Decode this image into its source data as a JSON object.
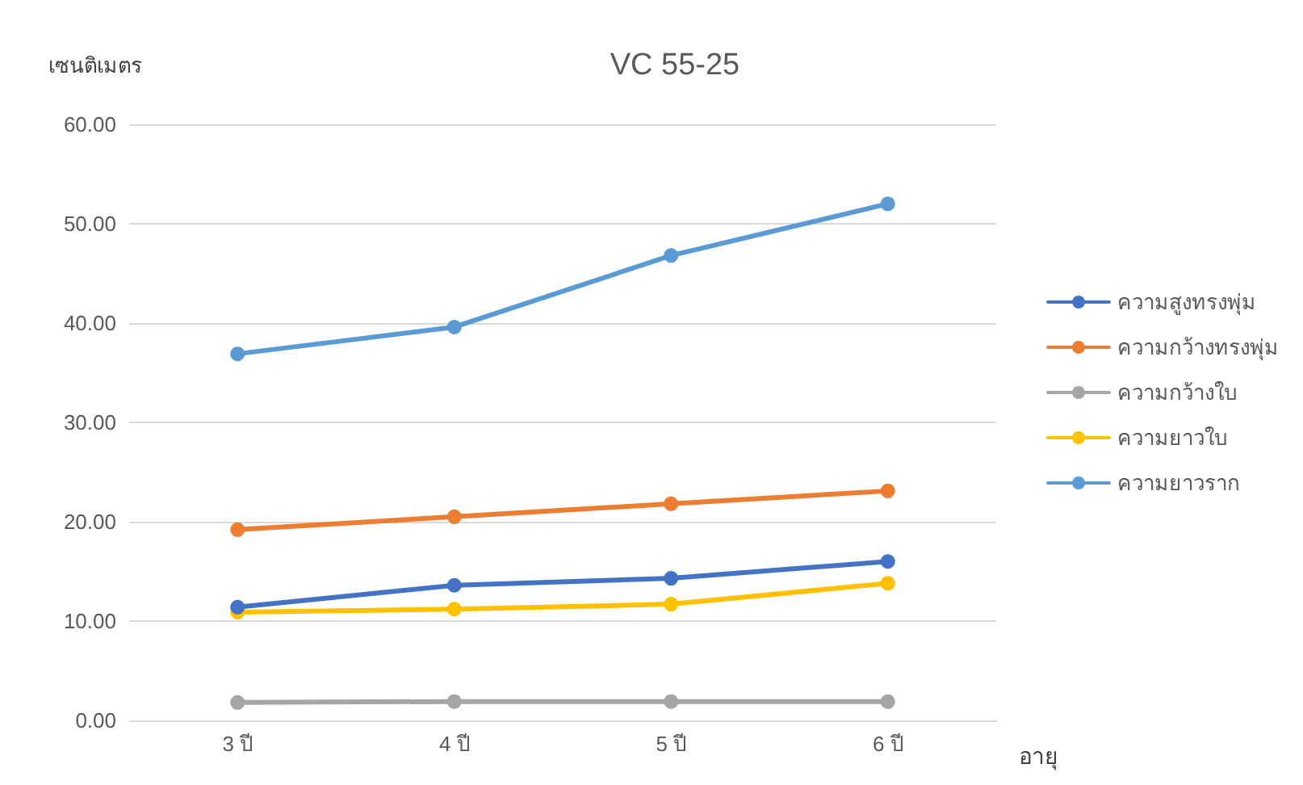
{
  "chart_data": {
    "type": "line",
    "title": "VC 55-25",
    "ylabel": "เซนติเมตร",
    "xlabel": "อายุ",
    "categories": [
      "3 ปี",
      "4 ปี",
      "5 ปี",
      "6 ปี"
    ],
    "series": [
      {
        "name": "ความสูงทรงพุ่ม",
        "color": "#4472c4",
        "values": [
          11.4,
          13.6,
          14.3,
          16.0
        ]
      },
      {
        "name": "ความกว้างทรงพุ่ม",
        "color": "#ed7d31",
        "values": [
          19.2,
          20.5,
          21.8,
          23.1
        ]
      },
      {
        "name": "ความกว้างใบ",
        "color": "#a5a5a5",
        "values": [
          1.8,
          1.9,
          1.9,
          1.9
        ]
      },
      {
        "name": "ความยาวใบ",
        "color": "#ffc000",
        "values": [
          10.9,
          11.2,
          11.7,
          13.8
        ]
      },
      {
        "name": "ความยาวราก",
        "color": "#5b9bd5",
        "values": [
          36.9,
          39.6,
          46.8,
          52.0
        ]
      }
    ],
    "ylim": [
      0,
      60
    ],
    "yticks": [
      {
        "value": 0,
        "label": "0.00"
      },
      {
        "value": 10,
        "label": "10.00"
      },
      {
        "value": 20,
        "label": "20.00"
      },
      {
        "value": 30,
        "label": "30.00"
      },
      {
        "value": 40,
        "label": "40.00"
      },
      {
        "value": 50,
        "label": "50.00"
      },
      {
        "value": 60,
        "label": "60.00"
      }
    ],
    "grid": "y",
    "legend": "right",
    "marker": "circle",
    "line_style": "solid"
  }
}
